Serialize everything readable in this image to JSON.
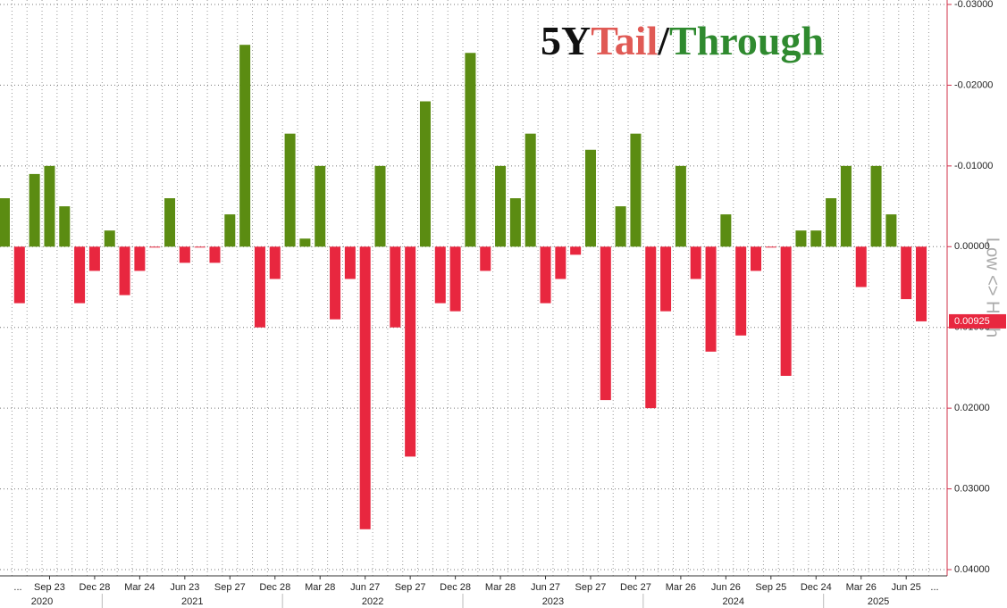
{
  "chart_data": {
    "type": "bar",
    "title_parts": [
      "5Y",
      "Tail",
      "/",
      "Through"
    ],
    "title_colors": [
      "#111111",
      "#e05a55",
      "#111111",
      "#2f8a2f"
    ],
    "y_label": "Low <> High",
    "positive_color": "#e8273f",
    "negative_color": "#5b8c12",
    "inverted": true,
    "grid": true,
    "ylim": [
      -0.03,
      0.04
    ],
    "yticks": [
      {
        "value": -0.03,
        "label": "-0.03000"
      },
      {
        "value": -0.02,
        "label": "-0.02000"
      },
      {
        "value": -0.01,
        "label": "-0.01000"
      },
      {
        "value": 0,
        "label": "0.00000"
      },
      {
        "value": 0.01,
        "label": "0.01000"
      },
      {
        "value": 0.02,
        "label": "0.02000"
      },
      {
        "value": 0.03,
        "label": "0.03000"
      },
      {
        "value": 0.04,
        "label": "0.04000"
      }
    ],
    "categories": [
      null,
      null,
      null,
      "Sep 23",
      null,
      null,
      "Dec 28",
      null,
      null,
      "Mar 24",
      null,
      null,
      "Jun 23",
      null,
      null,
      "Sep 27",
      null,
      null,
      "Dec 28",
      null,
      null,
      "Mar 28",
      null,
      null,
      "Jun 27",
      null,
      null,
      "Sep 27",
      null,
      null,
      "Dec 28",
      null,
      null,
      "Mar 28",
      null,
      null,
      "Jun 27",
      null,
      null,
      "Sep 27",
      null,
      null,
      "Dec 27",
      null,
      null,
      "Mar 26",
      null,
      null,
      "Jun 26",
      null,
      null,
      "Sep 25",
      null,
      null,
      "Dec 24",
      null,
      null,
      "Mar 26",
      null,
      null,
      "Jun 25",
      null
    ],
    "x_edge_labels": [
      "...",
      "..."
    ],
    "year_labels": [
      "2020",
      "2021",
      "2022",
      "2023",
      "2024",
      "2025"
    ],
    "values": [
      -0.006,
      0.007,
      -0.009,
      -0.01,
      -0.005,
      0.007,
      0.003,
      -0.002,
      0.006,
      0.003,
      0.0001,
      -0.006,
      0.002,
      0.0001,
      0.002,
      -0.004,
      -0.025,
      0.01,
      0.004,
      -0.014,
      -0.001,
      -0.01,
      0.009,
      0.004,
      0.035,
      -0.01,
      0.01,
      0.026,
      -0.018,
      0.007,
      0.008,
      -0.024,
      0.003,
      -0.01,
      -0.006,
      -0.014,
      0.007,
      0.004,
      0.001,
      -0.012,
      0.019,
      -0.005,
      -0.014,
      0.02,
      0.008,
      -0.01,
      0.004,
      0.013,
      -0.004,
      0.011,
      0.003,
      0.0001,
      0.016,
      -0.002,
      -0.002,
      -0.006,
      -0.01,
      0.005,
      -0.01,
      -0.004,
      0.0065,
      0.00925
    ]
  }
}
